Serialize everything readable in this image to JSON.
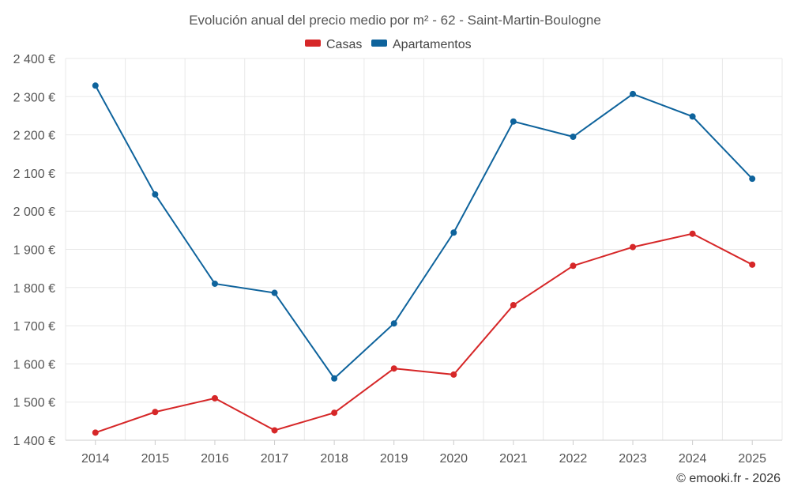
{
  "chart_data": {
    "type": "line",
    "title": "Evolución anual del precio medio por m² - 62 - Saint-Martin-Boulogne",
    "categories": [
      "2014",
      "2015",
      "2016",
      "2017",
      "2018",
      "2019",
      "2020",
      "2021",
      "2022",
      "2023",
      "2024",
      "2025"
    ],
    "series": [
      {
        "name": "Casas",
        "color": "#d62728",
        "values": [
          1420,
          1474,
          1510,
          1426,
          1472,
          1588,
          1572,
          1754,
          1857,
          1906,
          1941,
          1860
        ]
      },
      {
        "name": "Apartamentos",
        "color": "#0e639c",
        "values": [
          2329,
          2044,
          1810,
          1786,
          1562,
          1706,
          1944,
          2235,
          2195,
          2307,
          2248,
          2085
        ]
      }
    ],
    "ylim": [
      1400,
      2400
    ],
    "yticks": [
      1400,
      1500,
      1600,
      1700,
      1800,
      1900,
      2000,
      2100,
      2200,
      2300,
      2400
    ],
    "ytick_labels": [
      "1 400 €",
      "1 500 €",
      "1 600 €",
      "1 700 €",
      "1 800 €",
      "1 900 €",
      "2 000 €",
      "2 100 €",
      "2 200 €",
      "2 300 €",
      "2 400 €"
    ],
    "legend_position": "top-center",
    "grid": true,
    "credit": "© emooki.fr - 2026"
  }
}
